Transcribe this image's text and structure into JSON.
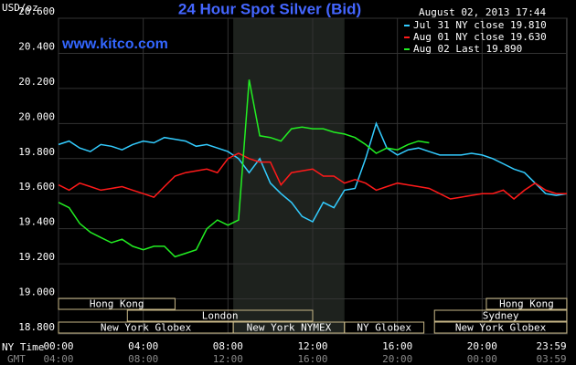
{
  "chart_data": {
    "type": "line",
    "title": "24 Hour Spot Silver (Bid)",
    "subtitle": "August 02, 2013 17:44",
    "watermark": "www.kitco.com",
    "ylabel": "USD/oz",
    "xlabel": "NY Time",
    "xlabel_gmt": "GMT",
    "x": [
      0,
      0.5,
      1,
      1.5,
      2,
      2.5,
      3,
      3.5,
      4,
      4.5,
      5,
      5.5,
      6,
      6.5,
      7,
      7.5,
      8,
      8.5,
      9,
      9.5,
      10,
      10.5,
      11,
      11.5,
      12,
      12.5,
      13,
      13.5,
      14,
      14.5,
      15,
      15.5,
      16,
      16.5,
      17,
      17.5,
      18,
      18.5,
      19,
      19.5,
      20,
      20.5,
      21,
      21.5,
      22,
      22.5,
      23,
      23.5,
      24
    ],
    "series": [
      {
        "name": "Jul 31 NY close 19.810",
        "color": "#33ccff",
        "values": [
          19.88,
          19.9,
          19.86,
          19.84,
          19.88,
          19.87,
          19.85,
          19.88,
          19.9,
          19.89,
          19.92,
          19.91,
          19.9,
          19.87,
          19.88,
          19.86,
          19.84,
          19.8,
          19.72,
          19.8,
          19.66,
          19.6,
          19.55,
          19.47,
          19.44,
          19.55,
          19.52,
          19.62,
          19.63,
          19.8,
          20.0,
          19.86,
          19.82,
          19.85,
          19.86,
          19.84,
          19.82,
          19.82,
          19.82,
          19.83,
          19.82,
          19.8,
          19.77,
          19.74,
          19.72,
          19.66,
          19.6,
          19.59,
          19.6
        ]
      },
      {
        "name": "Aug 01 NY close 19.630",
        "color": "#ff1a1a",
        "values": [
          19.65,
          19.62,
          19.66,
          19.64,
          19.62,
          19.63,
          19.64,
          19.62,
          19.6,
          19.58,
          19.64,
          19.7,
          19.72,
          19.73,
          19.74,
          19.72,
          19.8,
          19.83,
          19.8,
          19.78,
          19.78,
          19.65,
          19.72,
          19.73,
          19.74,
          19.7,
          19.7,
          19.66,
          19.68,
          19.66,
          19.62,
          19.64,
          19.66,
          19.65,
          19.64,
          19.63,
          19.6,
          19.57,
          19.58,
          19.59,
          19.6,
          19.6,
          19.62,
          19.57,
          19.62,
          19.66,
          19.62,
          19.6,
          19.6
        ]
      },
      {
        "name": "Aug 02 Last 19.890",
        "color": "#22ee22",
        "values": [
          19.55,
          19.52,
          19.43,
          19.38,
          19.35,
          19.32,
          19.34,
          19.3,
          19.28,
          19.3,
          19.3,
          19.24,
          19.26,
          19.28,
          19.4,
          19.45,
          19.42,
          19.45,
          20.25,
          19.93,
          19.92,
          19.9,
          19.97,
          19.98,
          19.97,
          19.97,
          19.95,
          19.94,
          19.92,
          19.88,
          19.83,
          19.86,
          19.85,
          19.88,
          19.9,
          19.89,
          null,
          null,
          null,
          null,
          null,
          null,
          null,
          null,
          null,
          null,
          null,
          null,
          null
        ]
      }
    ],
    "xlim": [
      0,
      24
    ],
    "xticks": [
      {
        "value": 0,
        "label": "00:00"
      },
      {
        "value": 4,
        "label": "04:00"
      },
      {
        "value": 8,
        "label": "08:00"
      },
      {
        "value": 12,
        "label": "12:00"
      },
      {
        "value": 16,
        "label": "16:00"
      },
      {
        "value": 20,
        "label": "20:00"
      },
      {
        "value": 23.983,
        "label": "23:59"
      }
    ],
    "xticks_gmt": [
      "04:00",
      "08:00",
      "12:00",
      "16:00",
      "20:00",
      "00:00",
      "03:59"
    ],
    "ylim": [
      18.8,
      20.6
    ],
    "yticks": [
      {
        "value": 18.8,
        "label": "18.800"
      },
      {
        "value": 19.0,
        "label": "19.000"
      },
      {
        "value": 19.2,
        "label": "19.200"
      },
      {
        "value": 19.4,
        "label": "19.400"
      },
      {
        "value": 19.6,
        "label": "19.600"
      },
      {
        "value": 19.8,
        "label": "19.800"
      },
      {
        "value": 20.0,
        "label": "20.000"
      },
      {
        "value": 20.2,
        "label": "20.200"
      },
      {
        "value": 20.4,
        "label": "20.400"
      },
      {
        "value": 20.6,
        "label": "20.600"
      }
    ],
    "grid": true,
    "highlight": [
      8.25,
      13.5
    ],
    "sessions": [
      [
        {
          "label": "Hong Kong",
          "start": 0,
          "end": 5.5
        },
        {
          "label": "Hong Kong",
          "start": 20.2,
          "end": 24
        }
      ],
      [
        {
          "label": "London",
          "start": 3.25,
          "end": 12
        },
        {
          "label": "Sydney",
          "start": 17.75,
          "end": 24
        }
      ],
      [
        {
          "label": "New York Globex",
          "start": 0,
          "end": 8.25
        },
        {
          "label": "New York NYMEX",
          "start": 8.25,
          "end": 13.5
        },
        {
          "label": "NY Globex",
          "start": 13.5,
          "end": 17.25
        },
        {
          "label": "New York Globex",
          "start": 17.75,
          "end": 24
        }
      ]
    ]
  }
}
